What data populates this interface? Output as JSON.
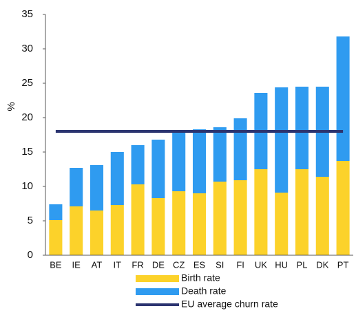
{
  "chart_data": {
    "type": "bar",
    "stacked": true,
    "y_label": "%",
    "categories": [
      "BE",
      "IE",
      "AT",
      "IT",
      "FR",
      "DE",
      "CZ",
      "ES",
      "SI",
      "FI",
      "UK",
      "HU",
      "PL",
      "DK",
      "PT"
    ],
    "series": [
      {
        "name": "Birth rate",
        "color": "#fcd22a",
        "type": "bar",
        "values": [
          5.1,
          7.1,
          6.5,
          7.3,
          10.3,
          8.3,
          9.3,
          9.0,
          10.7,
          10.9,
          12.5,
          9.1,
          12.5,
          11.4,
          13.7
        ]
      },
      {
        "name": "Death rate",
        "color": "#2f9bf0",
        "type": "bar",
        "values": [
          2.3,
          5.6,
          6.6,
          7.7,
          5.7,
          8.5,
          8.8,
          9.3,
          7.9,
          9.0,
          11.1,
          15.3,
          12.0,
          13.1,
          18.1
        ]
      },
      {
        "name": "EU average churn rate",
        "color": "#2b3470",
        "type": "line",
        "values": [
          18,
          18,
          18,
          18,
          18,
          18,
          18,
          18,
          18,
          18,
          18,
          18,
          18,
          18,
          18
        ]
      }
    ],
    "ylim": [
      0,
      35
    ],
    "yticks": [
      0,
      5,
      10,
      15,
      20,
      25,
      30,
      35
    ],
    "grid": false
  }
}
